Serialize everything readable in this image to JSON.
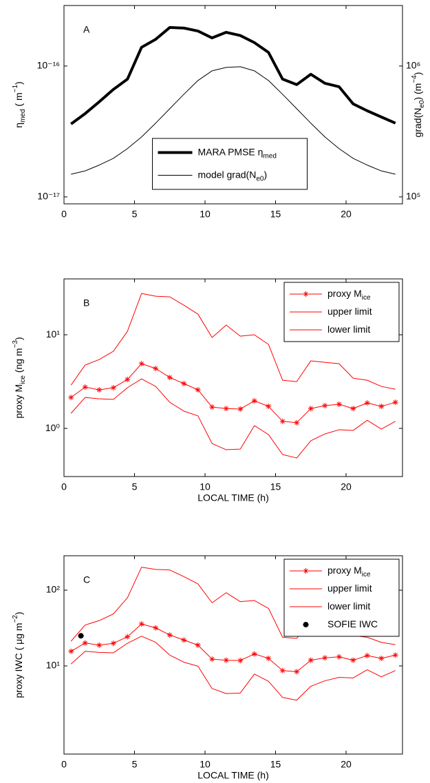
{
  "chart_data": [
    {
      "type": "line",
      "label": "A",
      "yscale": "log",
      "y2scale": "log",
      "ylabel": [
        "η",
        "med",
        " ( m",
        "−1",
        ")"
      ],
      "y2label": [
        "grad(N",
        "e0",
        ")  (m",
        "−4",
        ")"
      ],
      "x": [
        0.5,
        1.5,
        2.5,
        3.5,
        4.5,
        5.5,
        6.5,
        7.5,
        8.5,
        9.5,
        10.5,
        11.5,
        12.5,
        13.5,
        14.5,
        15.5,
        16.5,
        17.5,
        18.5,
        19.5,
        20.5,
        21.5,
        22.5,
        23.5
      ],
      "xlim": [
        0,
        24
      ],
      "xticks": [
        0,
        5,
        10,
        15,
        20
      ],
      "ylim": [
        8.85e-18,
        2.9e-16
      ],
      "yticks": [
        {
          "value": 1e-17,
          "label": "10⁻¹⁷"
        },
        {
          "value": 1e-16,
          "label": "10⁻¹⁶"
        }
      ],
      "y2lim": [
        88500,
        2900000
      ],
      "y2ticks": [
        {
          "value": 100000,
          "label": "10⁵"
        },
        {
          "value": 1000000,
          "label": "10⁶"
        }
      ],
      "legend": "lower center",
      "series": [
        {
          "name": [
            "MARA PMSE η",
            "med"
          ],
          "color": "#000000",
          "linewidth": 4,
          "values": [
            3.61e-17,
            4.33e-17,
            5.33e-17,
            6.62e-17,
            7.94e-17,
            1.39e-16,
            1.6e-16,
            1.97e-16,
            1.95e-16,
            1.85e-16,
            1.64e-16,
            1.81e-16,
            1.71e-16,
            1.51e-16,
            1.27e-16,
            7.94e-17,
            7.21e-17,
            8.65e-17,
            7.38e-17,
            6.95e-17,
            5.14e-17,
            4.55e-17,
            4.08e-17,
            3.66e-17
          ]
        },
        {
          "name": [
            "model grad(N",
            "e0",
            ")"
          ],
          "color": "#000000",
          "linewidth": 1,
          "axis": "y2",
          "values": [
            149000,
            158000,
            175000,
            197000,
            234000,
            287000,
            366000,
            472000,
            608000,
            775000,
            919000,
            976000,
            988000,
            919000,
            775000,
            608000,
            472000,
            366000,
            287000,
            234000,
            197000,
            175000,
            158000,
            149000
          ]
        }
      ]
    },
    {
      "type": "line",
      "label": "B",
      "yscale": "log",
      "ylabel": [
        "proxy M",
        "ice",
        "   (ng m",
        "−3",
        ")"
      ],
      "xlabel": "LOCAL TIME (h)",
      "x": [
        0.5,
        1.5,
        2.5,
        3.5,
        4.5,
        5.5,
        6.5,
        7.5,
        8.5,
        9.5,
        10.5,
        11.5,
        12.5,
        13.5,
        14.5,
        15.5,
        16.5,
        17.5,
        18.5,
        19.5,
        20.5,
        21.5,
        22.5,
        23.5
      ],
      "xlim": [
        0,
        24
      ],
      "xticks": [
        0,
        5,
        10,
        15,
        20
      ],
      "ylim": [
        0.306,
        39.5
      ],
      "yticks": [
        {
          "value": 1,
          "label": "10⁰"
        },
        {
          "value": 10,
          "label": "10¹"
        }
      ],
      "legend": "upper right",
      "series": [
        {
          "name": [
            "proxy M",
            "ice"
          ],
          "color": "#ff0000",
          "linewidth": 1,
          "marker": "*",
          "values": [
            2.14,
            2.76,
            2.58,
            2.72,
            3.33,
            4.91,
            4.36,
            3.5,
            3.01,
            2.58,
            1.69,
            1.63,
            1.61,
            1.97,
            1.72,
            1.19,
            1.15,
            1.63,
            1.75,
            1.81,
            1.63,
            1.87,
            1.72,
            1.9
          ]
        },
        {
          "name": [
            "upper limit"
          ],
          "color": "#ff0000",
          "linewidth": 1,
          "values": [
            2.9,
            4.75,
            5.44,
            6.66,
            10.9,
            27.6,
            25.8,
            25.4,
            20.7,
            16.6,
            9.35,
            12.7,
            9.67,
            10.0,
            7.89,
            3.27,
            3.16,
            5.26,
            5.08,
            4.91,
            3.44,
            3.27,
            2.81,
            2.62
          ]
        },
        {
          "name": [
            "lower limit"
          ],
          "color": "#ff0000",
          "linewidth": 1,
          "values": [
            1.45,
            2.14,
            2.07,
            2.04,
            2.72,
            3.38,
            2.81,
            1.9,
            1.53,
            1.36,
            0.689,
            0.592,
            0.601,
            1.07,
            0.859,
            0.526,
            0.483,
            0.738,
            0.873,
            0.967,
            0.951,
            1.22,
            0.984,
            1.19
          ]
        }
      ]
    },
    {
      "type": "line",
      "label": "C",
      "yscale": "log",
      "ylabel": [
        "proxy IWC ( μg m",
        "−2",
        ")"
      ],
      "xlabel": "LOCAL TIME (h)",
      "x": [
        0.5,
        1.5,
        2.5,
        3.5,
        4.5,
        5.5,
        6.5,
        7.5,
        8.5,
        9.5,
        10.5,
        11.5,
        12.5,
        13.5,
        14.5,
        15.5,
        16.5,
        17.5,
        18.5,
        19.5,
        20.5,
        21.5,
        22.5,
        23.5
      ],
      "xlim": [
        0,
        24
      ],
      "xticks": [
        0,
        5,
        10,
        15,
        20
      ],
      "ylim": [
        0.686,
        285
      ],
      "yticks": [
        {
          "value": 10,
          "label": "10¹"
        },
        {
          "value": 100,
          "label": "10²"
        }
      ],
      "legend": "upper right",
      "series": [
        {
          "name": [
            "proxy M",
            "ice"
          ],
          "color": "#ff0000",
          "linewidth": 1,
          "marker": "*",
          "values": [
            15.6,
            20.1,
            18.8,
            19.9,
            24.3,
            35.8,
            31.8,
            25.6,
            22.0,
            18.8,
            12.3,
            11.9,
            11.8,
            14.4,
            12.6,
            8.69,
            8.4,
            11.9,
            12.8,
            13.2,
            11.9,
            13.7,
            12.6,
            13.9
          ]
        },
        {
          "name": [
            "upper limit"
          ],
          "color": "#ff0000",
          "linewidth": 1,
          "values": [
            21.2,
            34.7,
            39.7,
            48.6,
            79.6,
            201,
            188,
            185,
            151,
            121,
            68.3,
            92.7,
            70.6,
            73.0,
            57.6,
            23.9,
            23.1,
            38.4,
            37.1,
            35.8,
            25.1,
            23.9,
            20.5,
            19.1
          ]
        },
        {
          "name": [
            "lower limit"
          ],
          "color": "#ff0000",
          "linewidth": 1,
          "values": [
            10.6,
            15.6,
            15.1,
            14.9,
            19.9,
            24.7,
            20.5,
            13.9,
            11.2,
            9.93,
            5.03,
            4.32,
            4.39,
            7.81,
            6.27,
            3.84,
            3.53,
            5.39,
            6.37,
            7.06,
            6.94,
            8.91,
            7.18,
            8.69
          ]
        },
        {
          "name": [
            "SOFIE IWC"
          ],
          "color": "#000000",
          "linewidth": 0,
          "marker": "x",
          "x": [
            1.2
          ],
          "values": [
            25
          ]
        }
      ]
    }
  ]
}
